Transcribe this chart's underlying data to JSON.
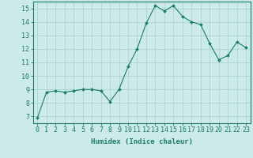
{
  "x": [
    0,
    1,
    2,
    3,
    4,
    5,
    6,
    7,
    8,
    9,
    10,
    11,
    12,
    13,
    14,
    15,
    16,
    17,
    18,
    19,
    20,
    21,
    22,
    23
  ],
  "y": [
    6.9,
    8.8,
    8.9,
    8.8,
    8.9,
    9.0,
    9.0,
    8.9,
    8.1,
    9.0,
    10.7,
    12.0,
    13.9,
    15.2,
    14.8,
    15.2,
    14.4,
    14.0,
    13.8,
    12.4,
    11.2,
    11.5,
    12.5,
    12.1
  ],
  "line_color": "#1a7a6e",
  "marker": "D",
  "marker_size": 2.0,
  "bg_color": "#cceae7",
  "grid_color": "#aad4d0",
  "xlabel": "Humidex (Indice chaleur)",
  "xlim": [
    -0.5,
    23.5
  ],
  "ylim": [
    6.5,
    15.5
  ],
  "yticks": [
    7,
    8,
    9,
    10,
    11,
    12,
    13,
    14,
    15
  ],
  "xticks": [
    0,
    1,
    2,
    3,
    4,
    5,
    6,
    7,
    8,
    9,
    10,
    11,
    12,
    13,
    14,
    15,
    16,
    17,
    18,
    19,
    20,
    21,
    22,
    23
  ],
  "axis_color": "#1a7a6e",
  "label_fontsize": 6.5,
  "tick_fontsize": 6.0
}
